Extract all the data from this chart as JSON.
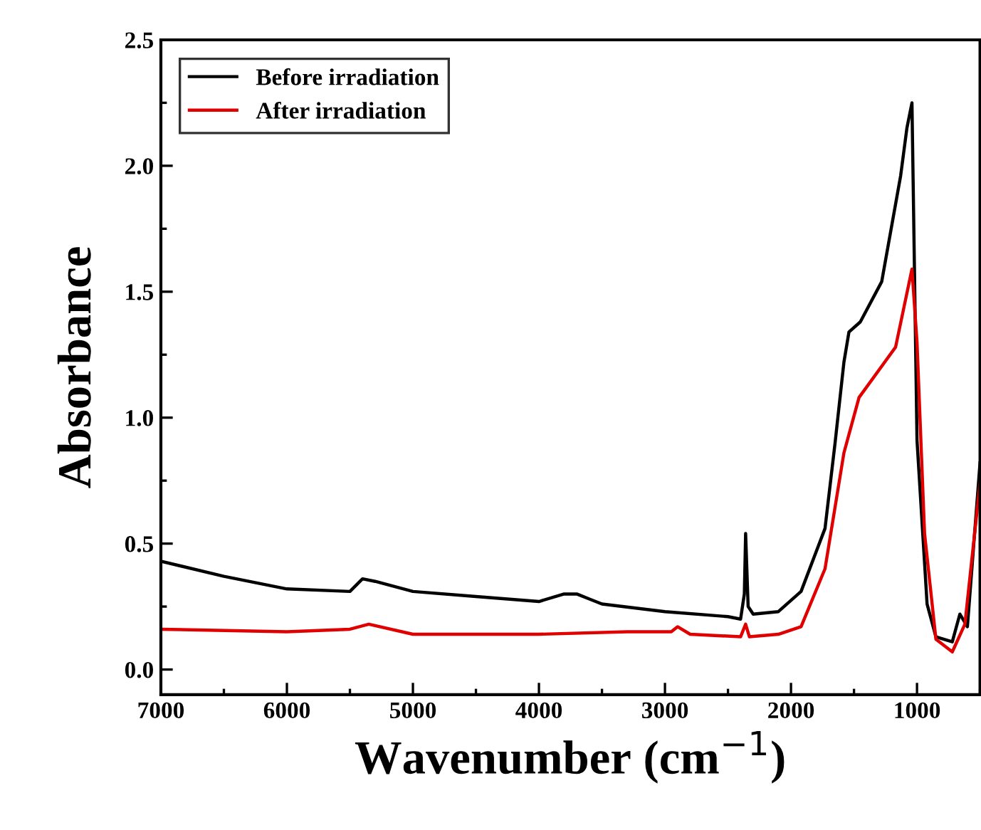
{
  "chart_data": {
    "type": "line",
    "xlabel": "Wavenumber (cm$^{−1}$)",
    "ylabel": "Absorbance",
    "xlim": [
      7000,
      500
    ],
    "ylim": [
      -0.1,
      2.5
    ],
    "xticks": [
      7000,
      6000,
      5000,
      4000,
      3000,
      2000,
      1000
    ],
    "yticks": [
      {
        "value": 0,
        "label": "0.0"
      },
      {
        "value": 0.5,
        "label": "0.5"
      },
      {
        "value": 1,
        "label": "1.0"
      },
      {
        "value": 1.5,
        "label": "1.5"
      },
      {
        "value": 2,
        "label": "2.0"
      },
      {
        "value": 2.5,
        "label": "2.5"
      }
    ],
    "grid": false,
    "legend": "top left",
    "marker": "none",
    "line_style": "solid",
    "series": [
      {
        "name": "Before irradiation",
        "color": "#000000",
        "x": [
          7000,
          6500,
          6000,
          5500,
          5400,
          5300,
          5000,
          4500,
          4000,
          3800,
          3700,
          3600,
          3500,
          3000,
          2500,
          2400,
          2370,
          2360,
          2340,
          2300,
          2100,
          1920,
          1730,
          1650,
          1580,
          1540,
          1450,
          1280,
          1130,
          1080,
          1040,
          1000,
          920,
          850,
          720,
          660,
          600,
          500
        ],
        "values": [
          0.43,
          0.37,
          0.32,
          0.31,
          0.36,
          0.35,
          0.31,
          0.29,
          0.27,
          0.3,
          0.3,
          0.28,
          0.26,
          0.23,
          0.21,
          0.2,
          0.3,
          0.54,
          0.25,
          0.22,
          0.23,
          0.31,
          0.56,
          0.9,
          1.22,
          1.34,
          1.38,
          1.54,
          1.96,
          2.15,
          2.25,
          0.91,
          0.26,
          0.13,
          0.11,
          0.22,
          0.17,
          0.82
        ]
      },
      {
        "name": "After irradiation",
        "color": "#e00000",
        "x": [
          7000,
          6000,
          5500,
          5350,
          5000,
          4000,
          3300,
          2950,
          2900,
          2800,
          2400,
          2360,
          2330,
          2100,
          1920,
          1730,
          1580,
          1460,
          1170,
          1040,
          1000,
          940,
          850,
          720,
          620,
          500
        ],
        "values": [
          0.16,
          0.15,
          0.16,
          0.18,
          0.14,
          0.14,
          0.15,
          0.15,
          0.17,
          0.14,
          0.13,
          0.18,
          0.13,
          0.14,
          0.17,
          0.4,
          0.86,
          1.08,
          1.28,
          1.59,
          1.3,
          0.54,
          0.12,
          0.07,
          0.18,
          0.74
        ]
      }
    ]
  }
}
